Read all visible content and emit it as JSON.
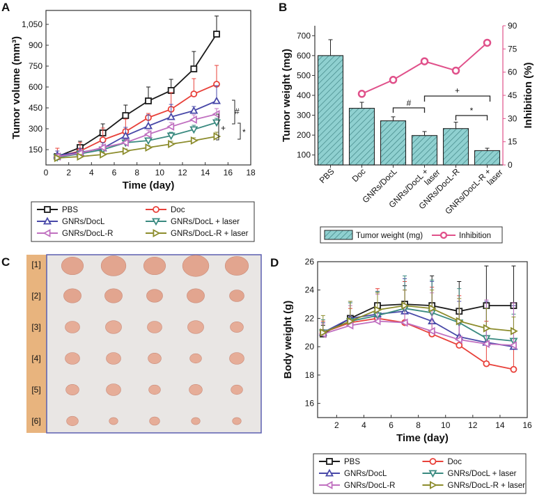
{
  "panels": {
    "A": "A",
    "B": "B",
    "C": "C",
    "D": "D"
  },
  "colors": {
    "PBS": "#1a1a1a",
    "Doc": "#e8413a",
    "GNRs/DocL": "#4848a8",
    "GNRs/DocL + laser": "#3a8a80",
    "GNRs/DocL-R": "#c070c0",
    "GNRs/DocL-R + laser": "#8c8c2c",
    "bar_fill": "#8fd0d0",
    "inhibition": "#e0508a"
  },
  "chart_data": [
    {
      "panel": "A",
      "type": "line",
      "xlabel": "Time (day)",
      "ylabel": "Tumor volume (mm³)",
      "xlim": [
        0,
        18
      ],
      "ylim": [
        40,
        1150
      ],
      "xticks": [
        0,
        2,
        4,
        6,
        8,
        10,
        12,
        14,
        16,
        18
      ],
      "yticks": [
        150,
        300,
        450,
        600,
        750,
        900,
        1050
      ],
      "ytick_labels": [
        "150",
        "300",
        "450",
        "600",
        "750",
        "900",
        "1,050"
      ],
      "x": [
        1,
        3,
        5,
        7,
        9,
        11,
        13,
        15
      ],
      "series": [
        {
          "name": "PBS",
          "marker": "square",
          "values": [
            100,
            165,
            270,
            395,
            500,
            575,
            730,
            980
          ],
          "errors": [
            20,
            45,
            65,
            75,
            100,
            80,
            125,
            130
          ]
        },
        {
          "name": "Doc",
          "marker": "circle",
          "values": [
            100,
            140,
            220,
            280,
            380,
            440,
            550,
            620
          ],
          "errors": [
            60,
            60,
            85,
            90,
            30,
            120,
            110,
            135
          ]
        },
        {
          "name": "GNRs/DocL",
          "marker": "triangle-up",
          "values": [
            110,
            130,
            160,
            250,
            320,
            385,
            430,
            500
          ],
          "errors": [
            30,
            30,
            40,
            60,
            80,
            90,
            30,
            110
          ]
        },
        {
          "name": "GNRs/DocL + laser",
          "marker": "triangle-down",
          "values": [
            95,
            120,
            150,
            200,
            215,
            250,
            295,
            345
          ],
          "errors": [
            20,
            20,
            20,
            20,
            20,
            25,
            30,
            30
          ]
        },
        {
          "name": "GNRs/DocL-R",
          "marker": "triangle-left",
          "values": [
            100,
            125,
            165,
            200,
            260,
            315,
            365,
            405
          ],
          "errors": [
            20,
            20,
            20,
            25,
            30,
            30,
            35,
            40
          ]
        },
        {
          "name": "GNRs/DocL-R + laser",
          "marker": "triangle-right",
          "values": [
            90,
            100,
            115,
            140,
            165,
            190,
            215,
            245
          ],
          "errors": [
            15,
            15,
            15,
            15,
            15,
            20,
            20,
            30
          ]
        }
      ],
      "annotations": [
        "#",
        "+",
        "*"
      ],
      "legend": "below"
    },
    {
      "panel": "B",
      "type": "bar",
      "ylabel": "Tumor weight (mg)",
      "y2label": "Inhibition (%)",
      "categories": [
        "PBS",
        "Doc",
        "GNRs/DocL",
        "GNRs/DocL + laser",
        "GNRs/DocL-R",
        "GNRs/DocL-R + laser"
      ],
      "category_lines": [
        [
          "PBS"
        ],
        [
          "Doc"
        ],
        [
          "GNRs/DocL"
        ],
        [
          "GNRs/DocL +",
          "laser"
        ],
        [
          "GNRs/DocL-R"
        ],
        [
          "GNRs/DocL-R +",
          "laser"
        ]
      ],
      "ylim": [
        50,
        750
      ],
      "yticks": [
        100,
        200,
        300,
        400,
        500,
        600,
        700
      ],
      "y2lim": [
        0,
        90
      ],
      "y2ticks": [
        0,
        15,
        30,
        45,
        60,
        75,
        90
      ],
      "series": [
        {
          "name": "Tumor weight (mg)",
          "type": "bar",
          "values": [
            600,
            335,
            272,
            198,
            233,
            122
          ],
          "errors": [
            80,
            30,
            20,
            20,
            32,
            12
          ]
        },
        {
          "name": "Inhibition",
          "type": "line",
          "axis": "right",
          "values": [
            null,
            46,
            55,
            67,
            61,
            79
          ]
        }
      ],
      "annotations": [
        "#",
        "+",
        "*"
      ],
      "legend": "below"
    },
    {
      "panel": "D",
      "type": "line",
      "xlabel": "Time (day)",
      "ylabel": "Body weight (g)",
      "xlim": [
        0.6,
        16
      ],
      "ylim": [
        15,
        26
      ],
      "xticks": [
        2,
        4,
        6,
        8,
        10,
        12,
        14,
        16
      ],
      "yticks": [
        16,
        18,
        20,
        22,
        24,
        26
      ],
      "x": [
        1,
        3,
        5,
        7,
        9,
        11,
        13,
        15
      ],
      "series": [
        {
          "name": "PBS",
          "marker": "square",
          "values": [
            20.9,
            22.0,
            22.9,
            23.0,
            22.9,
            22.5,
            22.9,
            22.9
          ],
          "errors": [
            0.6,
            1.2,
            1.0,
            1.3,
            2.1,
            2.1,
            2.8,
            2.8
          ]
        },
        {
          "name": "Doc",
          "marker": "circle",
          "values": [
            21.0,
            21.7,
            22.0,
            21.7,
            20.9,
            20.1,
            18.8,
            18.4
          ],
          "errors": [
            0.8,
            1.0,
            2.1,
            2.9,
            3.3,
            3.5,
            3.0,
            2.6
          ]
        },
        {
          "name": "GNRs/DocL",
          "marker": "triangle-up",
          "values": [
            21.0,
            22.0,
            22.3,
            22.5,
            21.8,
            20.7,
            20.3,
            20.0
          ],
          "errors": [
            0.7,
            1.1,
            1.6,
            2.3,
            2.8,
            2.5,
            2.9,
            2.9
          ]
        },
        {
          "name": "GNRs/DocL + laser",
          "marker": "triangle-down",
          "values": [
            21.0,
            21.8,
            22.2,
            22.7,
            22.4,
            21.7,
            20.6,
            20.4
          ],
          "errors": [
            0.9,
            1.3,
            1.7,
            2.3,
            2.3,
            2.4,
            2.1,
            1.9
          ]
        },
        {
          "name": "GNRs/DocL-R",
          "marker": "triangle-left",
          "values": [
            20.9,
            21.5,
            21.8,
            21.7,
            21.1,
            20.5,
            20.2,
            20.1
          ],
          "errors": [
            0.7,
            1.4,
            1.9,
            2.3,
            2.7,
            2.9,
            3.1,
            3.0
          ]
        },
        {
          "name": "GNRs/DocL-R + laser",
          "marker": "triangle-right",
          "values": [
            21.0,
            21.8,
            22.6,
            22.9,
            22.7,
            21.8,
            21.3,
            21.1
          ],
          "errors": [
            1.2,
            1.4,
            1.2,
            1.1,
            1.3,
            1.6,
            1.4,
            1.0
          ]
        }
      ],
      "legend": "below"
    }
  ],
  "photo": {
    "row_labels": [
      "[1]",
      "[2]",
      "[3]",
      "[4]",
      "[5]",
      "[6]"
    ]
  }
}
